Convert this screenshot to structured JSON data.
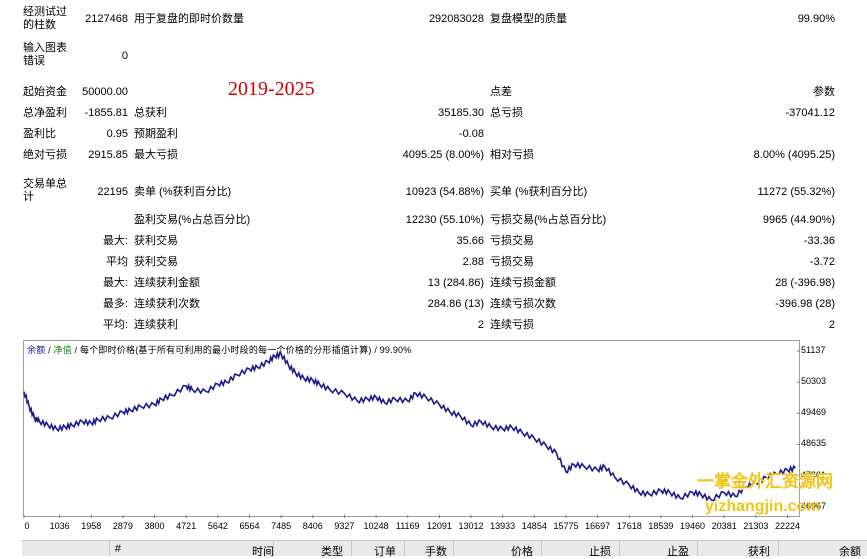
{
  "report": {
    "bars_tested": {
      "label": "经测试过的柱数",
      "value": "2127468"
    },
    "ticks_modelled": {
      "label": "用于复盘的即时价数量",
      "value": "292083028"
    },
    "modelling_quality": {
      "label": "复盘模型的质量",
      "value": "99.90%"
    },
    "chart_errors": {
      "label": "输入图表错误",
      "value": "0"
    },
    "year_range": "2019-2025",
    "initial_deposit": {
      "label": "起始资金",
      "value": "50000.00"
    },
    "spread": {
      "label": "点差",
      "value": "参数"
    },
    "total_net_profit": {
      "label": "总净盈利",
      "value": "-1855.81"
    },
    "gross_profit": {
      "label": "总获利",
      "value": "35185.30"
    },
    "gross_loss": {
      "label": "总亏损",
      "value": "-37041.12"
    },
    "profit_factor": {
      "label": "盈利比",
      "value": "0.95"
    },
    "expected_payoff": {
      "label": "预期盈利",
      "value": "-0.08"
    },
    "absolute_drawdown": {
      "label": "绝对亏损",
      "value": "2915.85"
    },
    "maximal_drawdown": {
      "label": "最大亏损",
      "value": "4095.25 (8.00%)"
    },
    "relative_drawdown": {
      "label": "相对亏损",
      "value": "8.00% (4095.25)"
    },
    "total_trades": {
      "label": "交易单总计",
      "value": "22195"
    },
    "short_positions": {
      "label": "卖单 (%获利百分比)",
      "value": "10923 (54.88%)"
    },
    "long_positions": {
      "label": "买单 (%获利百分比)",
      "value": "11272 (55.32%)"
    },
    "profit_trades": {
      "label": "盈利交易(%占总百分比)",
      "value": "12230 (55.10%)"
    },
    "loss_trades": {
      "label": "亏损交易(%占总百分比)",
      "value": "9965 (44.90%)"
    },
    "largest_prefix": "最大:",
    "largest_profit": {
      "label": "获利交易",
      "value": "35.66"
    },
    "largest_loss": {
      "label": "亏损交易",
      "value": "-33.36"
    },
    "average_prefix": "平均",
    "average_profit": {
      "label": "获利交易",
      "value": "2.88"
    },
    "average_loss": {
      "label": "亏损交易",
      "value": "-3.72"
    },
    "maximum_prefix": "最大:",
    "max_consec_wins": {
      "label": "连续获利金额",
      "value": "13 (284.86)"
    },
    "max_consec_losses": {
      "label": "连续亏损金额",
      "value": "28 (-396.98)"
    },
    "maximal_prefix": "最多:",
    "maximal_consec_profit": {
      "label": "连续获利次数",
      "value": "284.86 (13)"
    },
    "maximal_consec_loss": {
      "label": "连续亏损次数",
      "value": "-396.98 (28)"
    },
    "avg_prefix": "平均:",
    "avg_consec_wins": {
      "label": "连续获利",
      "value": "2"
    },
    "avg_consec_losses": {
      "label": "连续亏损",
      "value": "2"
    }
  },
  "chart": {
    "title_balance": "余额",
    "title_sep1": " / ",
    "title_equity": "净值",
    "title_rest": " / 每个即时价格(基于所有可利用的最小时段的每一个价格的分形插值计算) / 99.90%",
    "line_color": "#1a1a8c"
  },
  "watermark": {
    "line1": "一掌金外汇资源网",
    "line2": "yizhangjin.com"
  },
  "table_header": [
    "#",
    "时间",
    "类型",
    "订单",
    "手数",
    "价格",
    "止损",
    "止盈",
    "获利",
    "余额"
  ],
  "chart_data": {
    "type": "line",
    "title": "余额 / 净值 / 每个即时价格(基于所有可利用的最小时段的每一个价格的分形插值计算) / 99.90%",
    "x_ticks": [
      0,
      1036,
      1958,
      2879,
      3800,
      4721,
      5642,
      6564,
      7485,
      8406,
      9327,
      10248,
      11169,
      12091,
      13012,
      13933,
      14854,
      15775,
      16697,
      17618,
      18539,
      19460,
      20381,
      21303,
      22224
    ],
    "y_ticks": [
      46967,
      47801,
      48635,
      49469,
      50303,
      51137
    ],
    "xlim": [
      0,
      22500
    ],
    "ylim": [
      46800,
      51350
    ],
    "series": [
      {
        "name": "余额",
        "x": [
          0,
          150,
          300,
          450,
          700,
          950,
          1200,
          1400,
          1700,
          1958,
          2150,
          2500,
          2879,
          3100,
          3400,
          3800,
          4000,
          4300,
          4721,
          4900,
          5300,
          5642,
          5900,
          6200,
          6564,
          6800,
          7100,
          7300,
          7485,
          7700,
          7900,
          8150,
          8406,
          8600,
          8900,
          9327,
          9700,
          10000,
          10248,
          10500,
          10800,
          11169,
          11400,
          11700,
          12091,
          12400,
          12700,
          13012,
          13300,
          13600,
          13933,
          14200,
          14500,
          14854,
          15200,
          15500,
          15775,
          16000,
          16300,
          16697,
          16900,
          17200,
          17618,
          17900,
          18200,
          18539,
          18800,
          19100,
          19460,
          19700,
          20000,
          20381,
          20700,
          21000,
          21303,
          21600,
          21900,
          22224,
          22450
        ],
        "values": [
          50050,
          49650,
          49350,
          49250,
          49150,
          49050,
          49100,
          49150,
          49250,
          49200,
          49300,
          49350,
          49500,
          49550,
          49650,
          49700,
          49850,
          49950,
          50200,
          50100,
          50050,
          50250,
          50300,
          50500,
          50650,
          50700,
          50850,
          51000,
          51050,
          50750,
          50550,
          50400,
          50350,
          50250,
          50100,
          50000,
          49800,
          49850,
          49900,
          49750,
          49850,
          49800,
          50000,
          49900,
          49700,
          49500,
          49400,
          49150,
          49250,
          49100,
          49050,
          49100,
          48950,
          48800,
          48600,
          48400,
          47900,
          48100,
          48050,
          47950,
          48050,
          47750,
          47550,
          47350,
          47300,
          47400,
          47350,
          47200,
          47350,
          47300,
          47150,
          47350,
          47250,
          47500,
          47600,
          47750,
          47850,
          47950,
          48000
        ]
      }
    ],
    "grid": false,
    "legend": "none"
  }
}
